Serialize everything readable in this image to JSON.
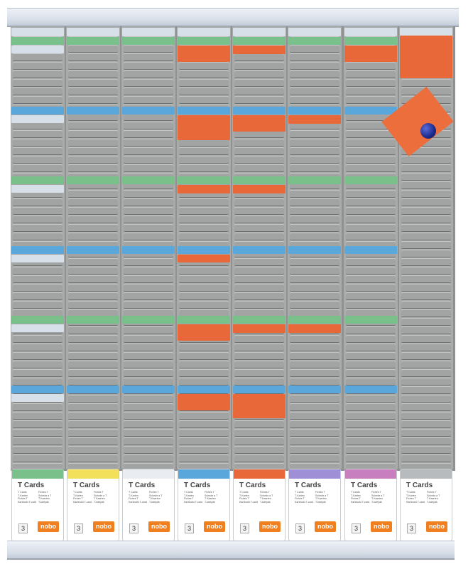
{
  "product": {
    "type": "T-card planning board",
    "columns": 8,
    "colors": {
      "frame_gray": "#a9abaa",
      "green_card": "#79c08a",
      "blue_card": "#5aa7dc",
      "orange_card": "#e8683a",
      "white_card": "#d7dfe9"
    }
  },
  "pockets": [
    {
      "tab_color": "#79c08a",
      "title": "T Cards",
      "lines_left": [
        "T Cards",
        "T-Karten",
        "Fiches T",
        "Karteczki T-card"
      ],
      "lines_right": [
        "Fiches T",
        "Schede a T",
        "T Kaarten",
        "T-kártyák"
      ],
      "number": "3",
      "logo": "nobo"
    },
    {
      "tab_color": "#f2df5a",
      "title": "T Cards",
      "lines_left": [
        "T Cards",
        "T-Karten",
        "Fiches T",
        "Karteczki T-card"
      ],
      "lines_right": [
        "Fiches T",
        "Schede a T",
        "T Kaarten",
        "T-kártyák"
      ],
      "number": "3",
      "logo": "nobo"
    },
    {
      "tab_color": "#e9edf2",
      "title": "T Cards",
      "lines_left": [
        "T Cards",
        "T-Karten",
        "Fiches T",
        "Karteczki T-card"
      ],
      "lines_right": [
        "Fiches T",
        "Schede a T",
        "T Kaarten",
        "T-kártyák"
      ],
      "number": "3",
      "logo": "nobo"
    },
    {
      "tab_color": "#5aa7dc",
      "title": "T Cards",
      "lines_left": [
        "T Cards",
        "T-Karten",
        "Fiches T",
        "Karteczki T-card"
      ],
      "lines_right": [
        "Fiches T",
        "Schede a T",
        "T Kaarten",
        "T-kártyák"
      ],
      "number": "3",
      "logo": "nobo"
    },
    {
      "tab_color": "#e8683a",
      "title": "T Cards",
      "lines_left": [
        "T Cards",
        "T-Karten",
        "Fiches T",
        "Karteczki T-card"
      ],
      "lines_right": [
        "Fiches T",
        "Schede a T",
        "T Kaarten",
        "T-kártyák"
      ],
      "number": "3",
      "logo": "nobo"
    },
    {
      "tab_color": "#9f8fd6",
      "title": "T Cards",
      "lines_left": [
        "T Cards",
        "T-Karten",
        "Fiches T",
        "Karteczki T-card"
      ],
      "lines_right": [
        "Fiches T",
        "Schede a T",
        "T Kaarten",
        "T-kártyák"
      ],
      "number": "3",
      "logo": "nobo"
    },
    {
      "tab_color": "#c77fc0",
      "title": "T Cards",
      "lines_left": [
        "T Cards",
        "T-Karten",
        "Fiches T",
        "Karteczki T-card"
      ],
      "lines_right": [
        "Fiches T",
        "Schede a T",
        "T Kaarten",
        "T-kártyák"
      ],
      "number": "3",
      "logo": "nobo"
    },
    {
      "tab_color": "#b7bbbd",
      "title": "T Cards",
      "lines_left": [
        "T Cards",
        "T-Karten",
        "Fiches T",
        "Karteczki T-card"
      ],
      "lines_right": [
        "Fiches T",
        "Schede a T",
        "T Kaarten",
        "T-kártyák"
      ],
      "number": "3",
      "logo": "nobo"
    }
  ]
}
